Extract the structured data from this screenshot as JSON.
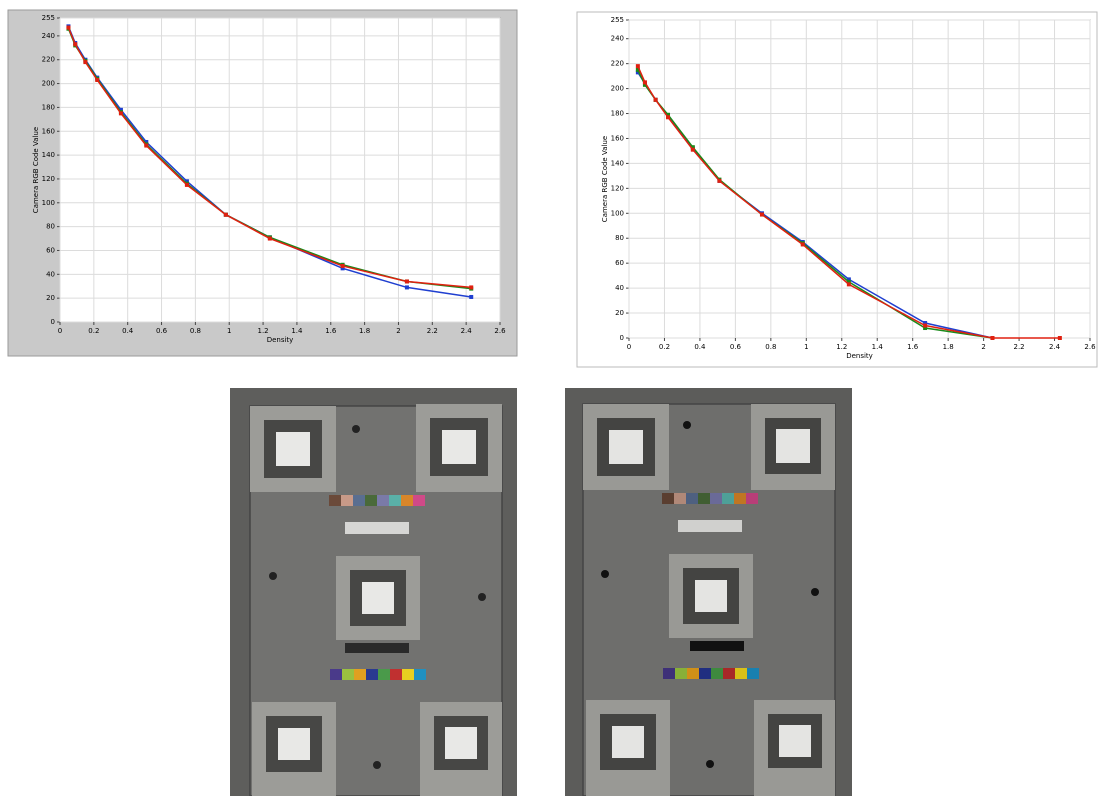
{
  "chart_data": [
    {
      "type": "line",
      "x_label": "Density",
      "y_label": "Camera RGB Code Value",
      "x": [
        0.05,
        0.09,
        0.15,
        0.22,
        0.36,
        0.51,
        0.75,
        0.98,
        1.24,
        1.67,
        2.05,
        2.43
      ],
      "series": [
        {
          "color": "#1f3fd0",
          "values": [
            248,
            234,
            220,
            205,
            178,
            151,
            118,
            90,
            71,
            45,
            29,
            21
          ]
        },
        {
          "color": "#1a8a1a",
          "values": [
            246,
            232,
            219,
            204,
            176,
            149,
            116,
            90,
            71,
            48,
            34,
            28
          ]
        },
        {
          "color": "#e02010",
          "values": [
            247,
            233,
            218,
            203,
            175,
            148,
            115,
            90,
            70,
            47,
            34,
            29
          ]
        }
      ],
      "xlim": [
        0,
        2.6
      ],
      "xticks": [
        0,
        0.2,
        0.4,
        0.6,
        0.8,
        1,
        1.2,
        1.4,
        1.6,
        1.8,
        2,
        2.2,
        2.4,
        2.6
      ],
      "ylim": [
        0,
        255
      ],
      "yticks": [
        0,
        20,
        40,
        60,
        80,
        100,
        120,
        140,
        160,
        180,
        200,
        220,
        240,
        255
      ],
      "grid": true
    },
    {
      "type": "line",
      "x_label": "Density",
      "y_label": "Camera RGB Code Value",
      "x": [
        0.05,
        0.09,
        0.15,
        0.22,
        0.36,
        0.51,
        0.75,
        0.98,
        1.24,
        1.67,
        2.05,
        2.43
      ],
      "series": [
        {
          "color": "#1f3fd0",
          "values": [
            213,
            204,
            191,
            178,
            152,
            126,
            100,
            77,
            47,
            12,
            0,
            null
          ]
        },
        {
          "color": "#1a8a1a",
          "values": [
            215,
            203,
            191,
            179,
            153,
            127,
            99,
            76,
            45,
            8,
            0,
            null
          ]
        },
        {
          "color": "#e02010",
          "values": [
            218,
            205,
            191,
            177,
            151,
            126,
            99,
            75,
            43,
            10,
            0,
            0
          ]
        }
      ],
      "xlim": [
        0,
        2.6
      ],
      "xticks": [
        0,
        0.2,
        0.4,
        0.6,
        0.8,
        1,
        1.2,
        1.4,
        1.6,
        1.8,
        2,
        2.2,
        2.4,
        2.6
      ],
      "ylim": [
        0,
        255
      ],
      "yticks": [
        0,
        20,
        40,
        60,
        80,
        100,
        120,
        140,
        160,
        180,
        200,
        220,
        240,
        255
      ],
      "grid": true
    }
  ]
}
